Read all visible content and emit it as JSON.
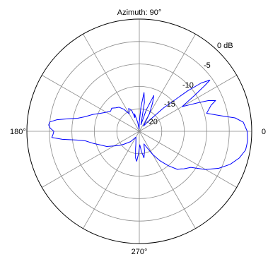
{
  "chart_data": {
    "type": "polar",
    "title": "Azimuth: 90°",
    "angle_labels": {
      "deg_0": "0",
      "deg_180": "180°",
      "deg_270": "270°"
    },
    "radial_labels": [
      "0 dB",
      "-5",
      "-10",
      "-15",
      "-20"
    ],
    "r_range_db": [
      -25,
      0
    ],
    "angle_grid_step_deg": 30,
    "grid": true,
    "series": [
      {
        "color": "#0000ff",
        "units": "dB",
        "points": [
          [
            0,
            -1.0
          ],
          [
            5,
            -1.8
          ],
          [
            8,
            -3.5
          ],
          [
            10,
            -5.8
          ],
          [
            12,
            -7.5
          ],
          [
            15,
            -9.5
          ],
          [
            20,
            -8.0
          ],
          [
            22,
            -6.7
          ],
          [
            24,
            -8.2
          ],
          [
            26,
            -10.5
          ],
          [
            28,
            -12.5
          ],
          [
            30,
            -14.0
          ],
          [
            33,
            -10.4
          ],
          [
            35,
            -7.2
          ],
          [
            36,
            -5.6
          ],
          [
            38,
            -7.5
          ],
          [
            40,
            -11.0
          ],
          [
            44,
            -17.5
          ],
          [
            48,
            -22.0
          ],
          [
            52,
            -23.5
          ],
          [
            60,
            -20.5
          ],
          [
            65,
            -18.0
          ],
          [
            68,
            -16.4
          ],
          [
            72,
            -20.0
          ],
          [
            76,
            -23.5
          ],
          [
            80,
            -18.5
          ],
          [
            83,
            -16.3
          ],
          [
            86,
            -19.5
          ],
          [
            90,
            -23.0
          ],
          [
            95,
            -24.5
          ],
          [
            100,
            -23.0
          ],
          [
            105,
            -21.0
          ],
          [
            108,
            -21.8
          ],
          [
            110,
            -20.0
          ],
          [
            115,
            -19.4
          ],
          [
            120,
            -20.5
          ],
          [
            125,
            -19.0
          ],
          [
            130,
            -18.0
          ],
          [
            135,
            -17.6
          ],
          [
            140,
            -17.0
          ],
          [
            145,
            -17.2
          ],
          [
            150,
            -16.5
          ],
          [
            155,
            -15.5
          ],
          [
            160,
            -14.0
          ],
          [
            165,
            -12.5
          ],
          [
            168,
            -11.0
          ],
          [
            170,
            -9.0
          ],
          [
            172,
            -6.5
          ],
          [
            174,
            -5.0
          ],
          [
            176,
            -4.8
          ],
          [
            178,
            -5.2
          ],
          [
            180,
            -6.0
          ],
          [
            182,
            -5.8
          ],
          [
            184,
            -5.5
          ],
          [
            186,
            -7.8
          ],
          [
            188,
            -11.0
          ],
          [
            190,
            -12.8
          ],
          [
            195,
            -14.5
          ],
          [
            200,
            -16.0
          ],
          [
            205,
            -17.0
          ],
          [
            210,
            -18.5
          ],
          [
            215,
            -19.5
          ],
          [
            220,
            -20.5
          ],
          [
            230,
            -22.0
          ],
          [
            240,
            -23.5
          ],
          [
            250,
            -22.8
          ],
          [
            255,
            -22.0
          ],
          [
            258,
            -21.0
          ],
          [
            262,
            -19.0
          ],
          [
            265,
            -18.3
          ],
          [
            268,
            -20.0
          ],
          [
            272,
            -22.0
          ],
          [
            276,
            -20.5
          ],
          [
            280,
            -19.0
          ],
          [
            285,
            -20.5
          ],
          [
            290,
            -22.0
          ],
          [
            295,
            -21.0
          ],
          [
            300,
            -19.0
          ],
          [
            305,
            -17.0
          ],
          [
            310,
            -15.0
          ],
          [
            315,
            -13.0
          ],
          [
            318,
            -12.5
          ],
          [
            320,
            -12.0
          ],
          [
            325,
            -11.0
          ],
          [
            330,
            -8.0
          ],
          [
            335,
            -5.5
          ],
          [
            340,
            -3.5
          ],
          [
            345,
            -2.0
          ],
          [
            350,
            -1.0
          ],
          [
            355,
            -0.8
          ]
        ]
      }
    ]
  }
}
